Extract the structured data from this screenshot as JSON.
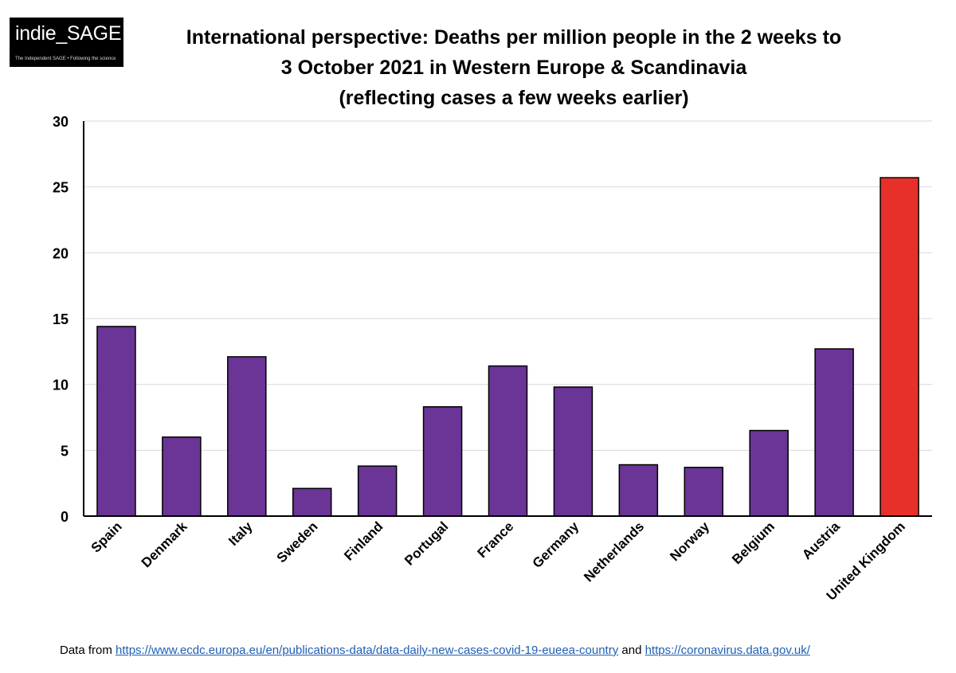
{
  "logo": {
    "text": "indie_SAGE",
    "tagline": "The Independent SAGE • Following the science"
  },
  "chart_data": {
    "type": "bar",
    "title_lines": [
      "International perspective: Deaths per million people in the 2 weeks to",
      "3 October 2021 in Western Europe & Scandinavia",
      "(reflecting cases a few weeks earlier)"
    ],
    "categories": [
      "Spain",
      "Denmark",
      "Italy",
      "Sweden",
      "Finland",
      "Portugal",
      "France",
      "Germany",
      "Netherlands",
      "Norway",
      "Belgium",
      "Austria",
      "United Kingdom"
    ],
    "values": [
      14.4,
      6.0,
      12.1,
      2.1,
      3.8,
      8.3,
      11.4,
      9.8,
      3.9,
      3.7,
      6.5,
      12.7,
      25.7
    ],
    "bar_colors": [
      "#6a3596",
      "#6a3596",
      "#6a3596",
      "#6a3596",
      "#6a3596",
      "#6a3596",
      "#6a3596",
      "#6a3596",
      "#6a3596",
      "#6a3596",
      "#6a3596",
      "#6a3596",
      "#e8302a"
    ],
    "ylim": [
      0,
      30
    ],
    "yticks": [
      "0",
      "5",
      "10",
      "15",
      "20",
      "25",
      "30"
    ],
    "grid": true,
    "legend": "none"
  },
  "footer": {
    "prefix": "Data from ",
    "link1": "https://www.ecdc.europa.eu/en/publications-data/data-daily-new-cases-covid-19-eueea-country",
    "middle": " and ",
    "link2": "https://coronavirus.data.gov.uk/"
  }
}
